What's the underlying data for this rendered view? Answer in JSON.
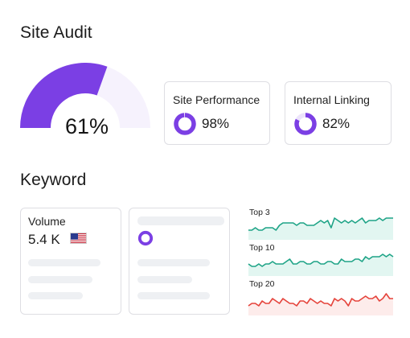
{
  "site_audit": {
    "title": "Site Audit",
    "score_text": "61%",
    "score": 0.61,
    "accent": "#7b3fe4",
    "track": "#f6f2fd",
    "metrics": [
      {
        "label": "Site Performance",
        "value_text": "98%",
        "value": 0.98
      },
      {
        "label": "Internal Linking",
        "value_text": "82%",
        "value": 0.82
      }
    ]
  },
  "keyword": {
    "title": "Keyword",
    "volume": {
      "label": "Volume",
      "value": "5.4 K",
      "flag": "us-flag-icon"
    },
    "trends": [
      {
        "label": "Top 3",
        "color": "#1fa487",
        "fill": "#e2f6f1",
        "values": [
          3,
          3,
          4,
          3,
          3,
          4,
          4,
          4,
          3,
          5,
          6,
          6,
          6,
          6,
          5,
          6,
          6,
          5,
          5,
          5,
          6,
          7,
          6,
          7,
          4,
          8,
          7,
          6,
          7,
          6,
          7,
          6,
          7,
          8,
          6,
          7,
          7,
          7,
          8,
          7,
          8,
          8,
          8
        ]
      },
      {
        "label": "Top 10",
        "color": "#1fa487",
        "fill": "#e2f6f1",
        "values": [
          4,
          3,
          3,
          4,
          3,
          4,
          4,
          5,
          4,
          4,
          4,
          5,
          6,
          4,
          4,
          5,
          5,
          4,
          4,
          5,
          5,
          4,
          4,
          5,
          5,
          4,
          4,
          6,
          5,
          5,
          5,
          6,
          6,
          5,
          7,
          6,
          7,
          7,
          7,
          8,
          7,
          8,
          7
        ]
      },
      {
        "label": "Top 20",
        "color": "#e5433b",
        "fill": "#fdeceb",
        "values": [
          3,
          4,
          4,
          3,
          5,
          4,
          4,
          6,
          5,
          4,
          6,
          5,
          4,
          4,
          3,
          5,
          5,
          4,
          6,
          5,
          4,
          5,
          4,
          4,
          3,
          6,
          5,
          6,
          5,
          3,
          6,
          5,
          5,
          6,
          7,
          6,
          6,
          7,
          5,
          6,
          8,
          6,
          6
        ]
      }
    ]
  }
}
